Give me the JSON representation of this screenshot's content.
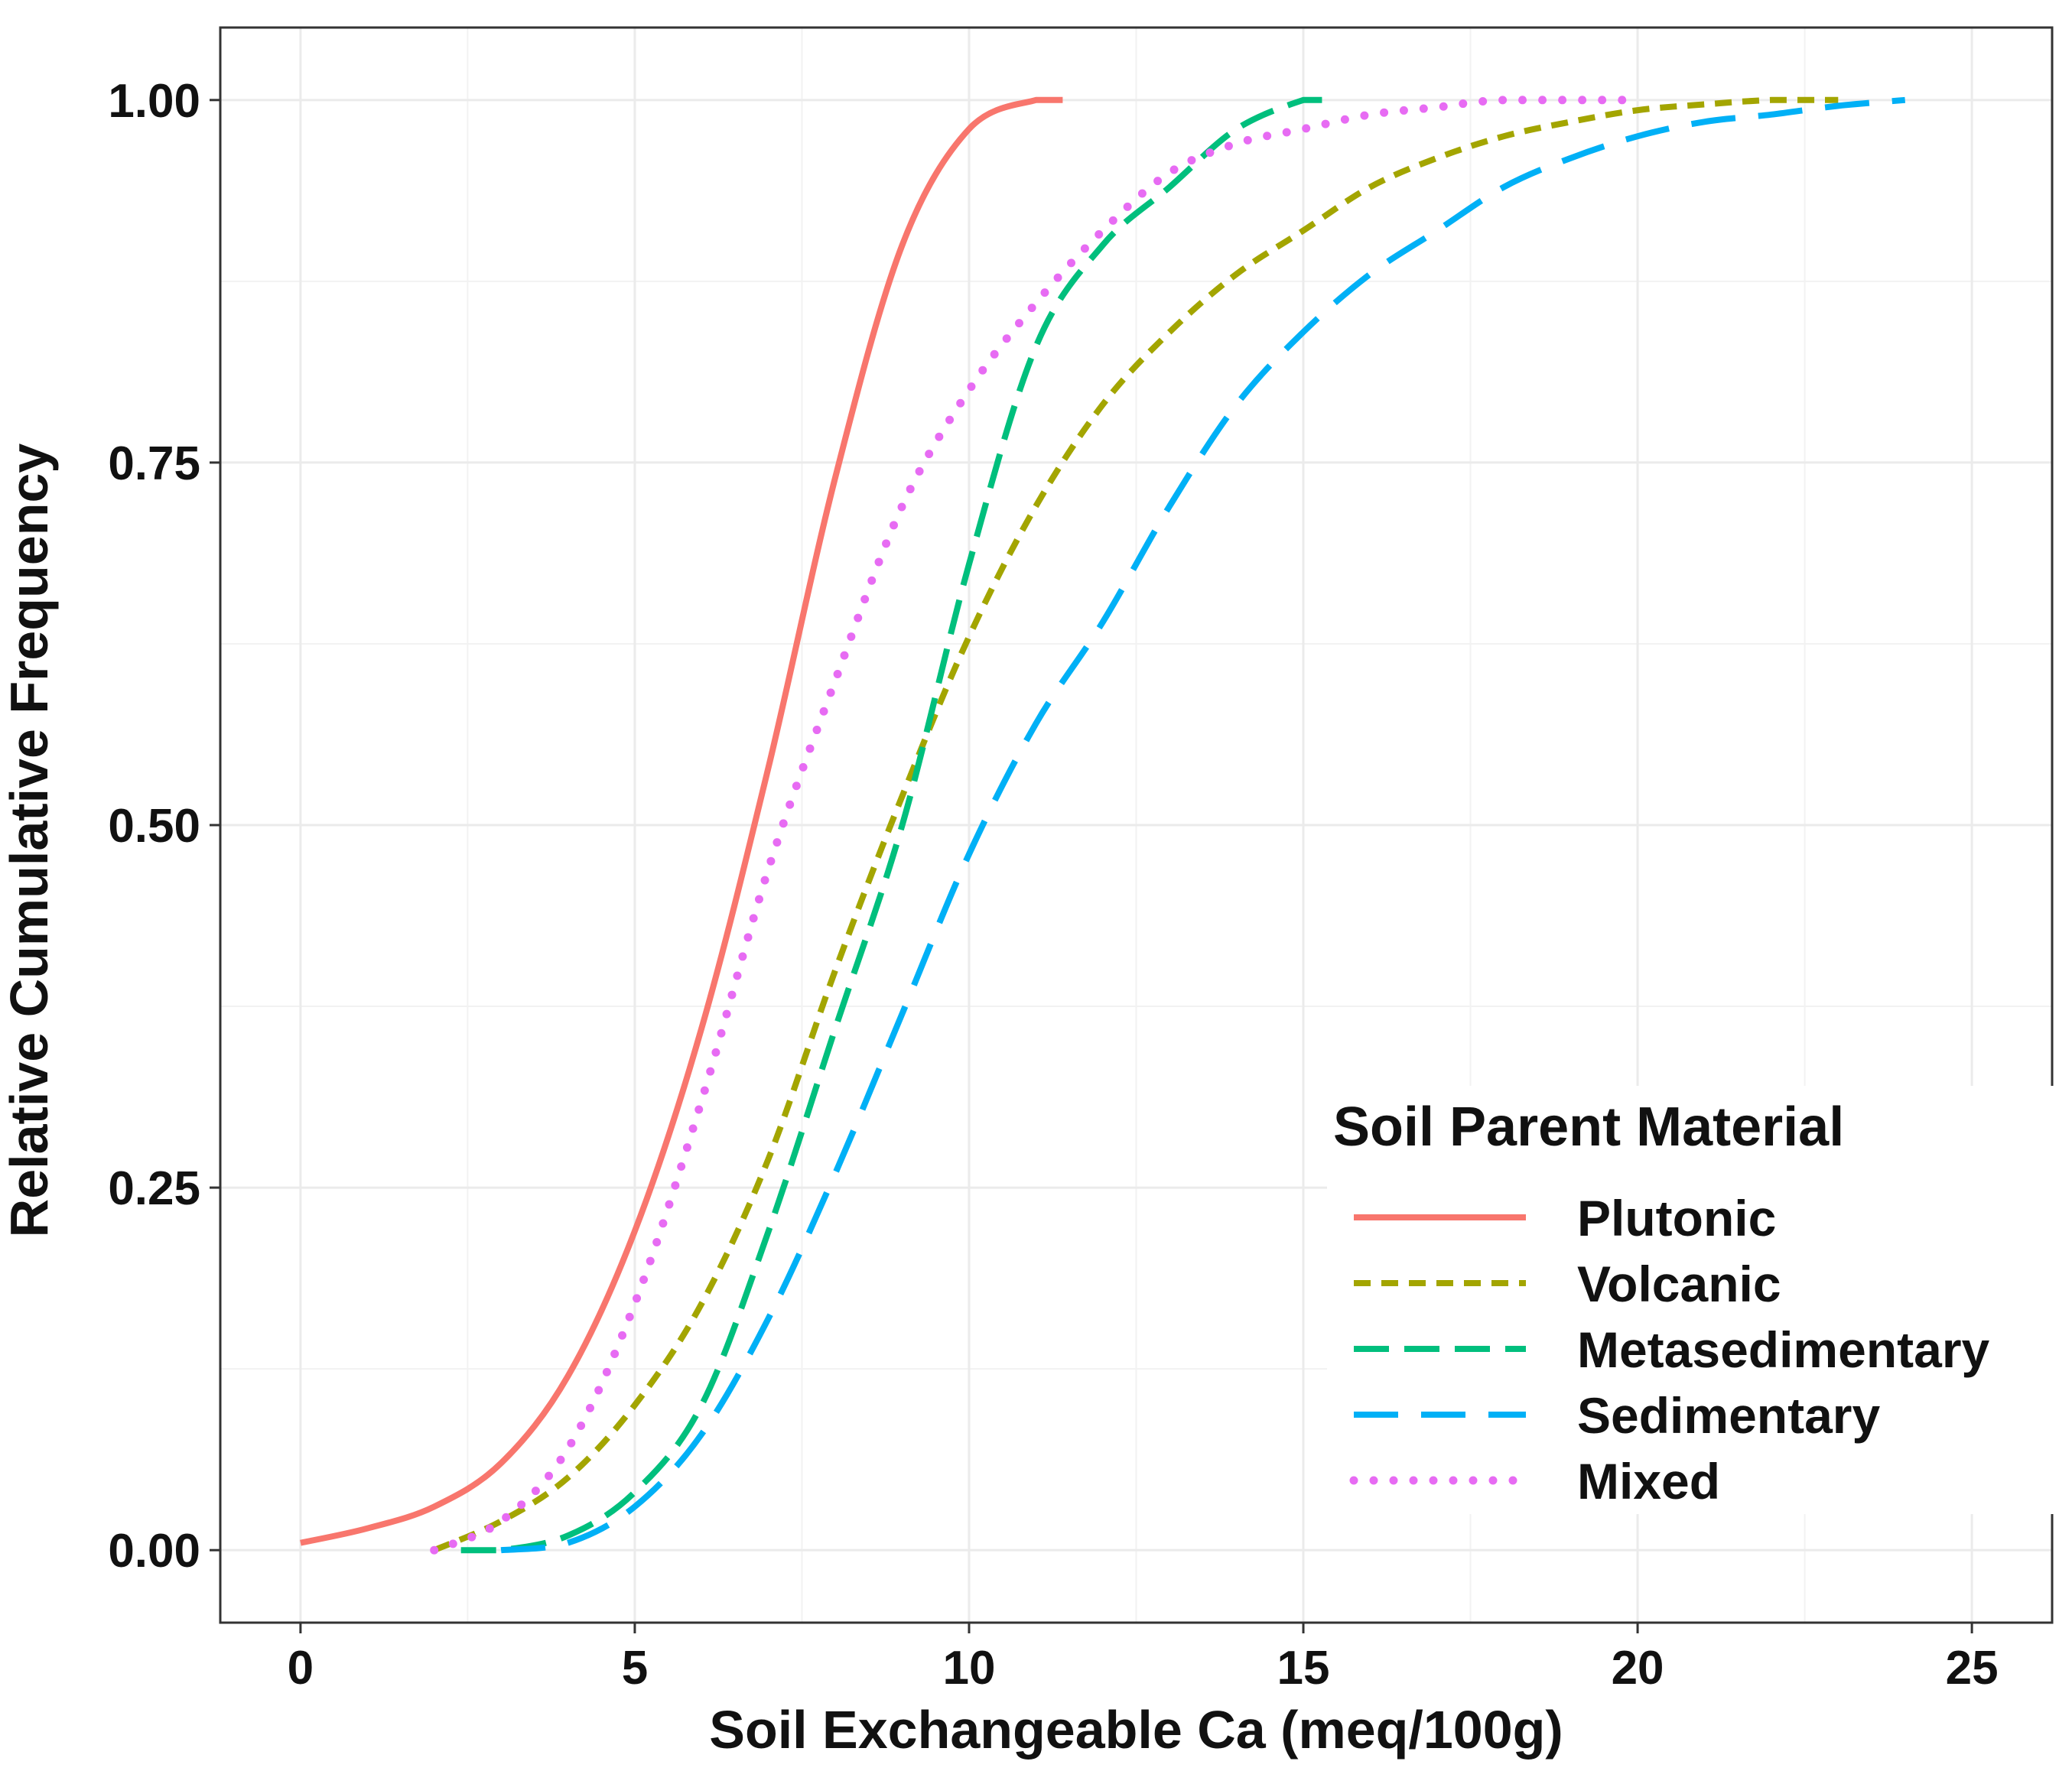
{
  "chart_data": {
    "type": "line",
    "title": "",
    "xlabel": "Soil Exchangeable Ca (meq/100g)",
    "ylabel": "Relative Cumulative Frequency",
    "xlim": [
      -1.2,
      26.2
    ],
    "ylim": [
      -0.05,
      1.05
    ],
    "x_ticks": [
      0,
      5,
      10,
      15,
      20,
      25
    ],
    "x_tick_labels": [
      "0",
      "5",
      "10",
      "15",
      "20",
      "25"
    ],
    "y_ticks": [
      0,
      0.25,
      0.5,
      0.75,
      1.0
    ],
    "y_tick_labels": [
      "0.00",
      "0.25",
      "0.50",
      "0.75",
      "1.00"
    ],
    "grid": true,
    "legend": {
      "title": "Soil  Parent  Material",
      "position": "bottom-right, inside plot"
    },
    "series": [
      {
        "name": "Plutonic",
        "color": "#f8766d",
        "dash": "solid",
        "points": [
          [
            0,
            0.005
          ],
          [
            1,
            0.015
          ],
          [
            2,
            0.03
          ],
          [
            3,
            0.06
          ],
          [
            4,
            0.12
          ],
          [
            5,
            0.22
          ],
          [
            6,
            0.36
          ],
          [
            7,
            0.54
          ],
          [
            8,
            0.74
          ],
          [
            9,
            0.9
          ],
          [
            10,
            0.98
          ],
          [
            11,
            1.0
          ],
          [
            11.4,
            1.0
          ]
        ]
      },
      {
        "name": "Volcanic",
        "color": "#a3a500",
        "dash": "dotted-dash",
        "points": [
          [
            2,
            0.0
          ],
          [
            3,
            0.02
          ],
          [
            4,
            0.05
          ],
          [
            5,
            0.1
          ],
          [
            6,
            0.17
          ],
          [
            7,
            0.27
          ],
          [
            8,
            0.4
          ],
          [
            9,
            0.52
          ],
          [
            10,
            0.63
          ],
          [
            11,
            0.72
          ],
          [
            12,
            0.79
          ],
          [
            13,
            0.84
          ],
          [
            14,
            0.88
          ],
          [
            15,
            0.91
          ],
          [
            16,
            0.94
          ],
          [
            17,
            0.96
          ],
          [
            18,
            0.975
          ],
          [
            19,
            0.985
          ],
          [
            20,
            0.993
          ],
          [
            21,
            0.997
          ],
          [
            22,
            1.0
          ],
          [
            23,
            1.0
          ]
        ]
      },
      {
        "name": "Metasedimentary",
        "color": "#00bf7d",
        "dash": "dashed",
        "points": [
          [
            2.4,
            0.0
          ],
          [
            3,
            0.0
          ],
          [
            4,
            0.01
          ],
          [
            5,
            0.04
          ],
          [
            6,
            0.1
          ],
          [
            7,
            0.22
          ],
          [
            8,
            0.36
          ],
          [
            9,
            0.5
          ],
          [
            10,
            0.68
          ],
          [
            11,
            0.83
          ],
          [
            12,
            0.9
          ],
          [
            13,
            0.94
          ],
          [
            14,
            0.98
          ],
          [
            15,
            1.0
          ],
          [
            15.3,
            1.0
          ]
        ]
      },
      {
        "name": "Sedimentary",
        "color": "#00b0f6",
        "dash": "long-dashed",
        "points": [
          [
            3,
            0.0
          ],
          [
            4,
            0.005
          ],
          [
            5,
            0.03
          ],
          [
            6,
            0.08
          ],
          [
            7,
            0.16
          ],
          [
            8,
            0.26
          ],
          [
            9,
            0.37
          ],
          [
            10,
            0.48
          ],
          [
            11,
            0.57
          ],
          [
            12,
            0.64
          ],
          [
            13,
            0.72
          ],
          [
            14,
            0.79
          ],
          [
            15,
            0.84
          ],
          [
            16,
            0.88
          ],
          [
            17,
            0.91
          ],
          [
            18,
            0.94
          ],
          [
            19,
            0.96
          ],
          [
            20,
            0.975
          ],
          [
            21,
            0.985
          ],
          [
            22,
            0.99
          ],
          [
            23,
            0.996
          ],
          [
            24,
            1.0
          ]
        ]
      },
      {
        "name": "Mixed",
        "color": "#e76bf3",
        "dash": "dotted",
        "points": [
          [
            2,
            0.0
          ],
          [
            3,
            0.02
          ],
          [
            4,
            0.07
          ],
          [
            5,
            0.17
          ],
          [
            6,
            0.31
          ],
          [
            7,
            0.47
          ],
          [
            8,
            0.6
          ],
          [
            9,
            0.72
          ],
          [
            10,
            0.8
          ],
          [
            11,
            0.86
          ],
          [
            12,
            0.91
          ],
          [
            13,
            0.95
          ],
          [
            14,
            0.97
          ],
          [
            15,
            0.98
          ],
          [
            16,
            0.99
          ],
          [
            17,
            0.995
          ],
          [
            18,
            1.0
          ],
          [
            20,
            1.0
          ]
        ]
      }
    ]
  }
}
